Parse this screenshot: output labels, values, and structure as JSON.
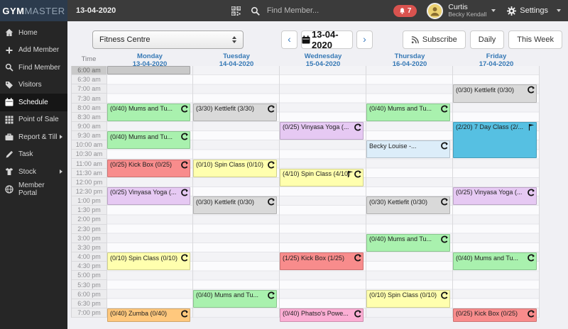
{
  "topbar": {
    "logo_bold": "GYM",
    "logo_light": "MASTER",
    "date": "13-04-2020",
    "search_placeholder": "Find Member...",
    "notification_count": "7",
    "user": {
      "name": "Curtis",
      "subname": "Becky Kendall"
    },
    "settings_label": "Settings"
  },
  "sidebar": {
    "items": [
      {
        "label": "Home",
        "icon": "home",
        "active": false,
        "chevron": false
      },
      {
        "label": "Add Member",
        "icon": "plus",
        "active": false,
        "chevron": false
      },
      {
        "label": "Find Member",
        "icon": "search",
        "active": false,
        "chevron": false
      },
      {
        "label": "Visitors",
        "icon": "tag",
        "active": false,
        "chevron": false
      },
      {
        "label": "Schedule",
        "icon": "calendar",
        "active": true,
        "chevron": false
      },
      {
        "label": "Point of Sale",
        "icon": "grid",
        "active": false,
        "chevron": false
      },
      {
        "label": "Report & Till",
        "icon": "briefcase",
        "active": false,
        "chevron": true
      },
      {
        "label": "Task",
        "icon": "pencil",
        "active": false,
        "chevron": false
      },
      {
        "label": "Stock",
        "icon": "shirt",
        "active": false,
        "chevron": true
      },
      {
        "label": "Member Portal",
        "icon": "globe",
        "active": false,
        "chevron": false
      }
    ]
  },
  "toolbar": {
    "location_select": "Fitness Centre",
    "prev": "‹",
    "next": "›",
    "nav_date": "13-04-2020",
    "buttons": [
      {
        "label": "Subscribe",
        "icon": "rss"
      },
      {
        "label": "Daily"
      },
      {
        "label": "This Week"
      }
    ]
  },
  "calendar": {
    "time_header": "Time",
    "days": [
      {
        "name": "Monday",
        "date": "13-04-2020"
      },
      {
        "name": "Tuesday",
        "date": "14-04-2020"
      },
      {
        "name": "Wednesday",
        "date": "15-04-2020"
      },
      {
        "name": "Thursday",
        "date": "16-04-2020"
      },
      {
        "name": "Friday",
        "date": "17-04-2020"
      }
    ],
    "times": [
      "6:00 am",
      "6:30 am",
      "7:00 am",
      "7:30 am",
      "8:00 am",
      "8:30 am",
      "9:00 am",
      "9:30 am",
      "10:00 am",
      "10:30 am",
      "11:00 am",
      "11:30 am",
      "12:00 pm",
      "12:30 pm",
      "1:00 pm",
      "1:30 pm",
      "2:00 pm",
      "2:30 pm",
      "3:00 pm",
      "3:30 pm",
      "4:00 pm",
      "4:30 pm",
      "5:00 pm",
      "5:30 pm",
      "6:00 pm",
      "6:30 pm",
      "7:00 pm"
    ],
    "current_time_row": "6:00 am",
    "colors": {
      "green": "#a9f1ae",
      "gray": "#d9d9d9",
      "graydark": "#c9c9c9",
      "red": "#f88c8c",
      "yellow": "#ffffae",
      "purple": "#e6c9f3",
      "blue": "#56c0e2",
      "lightblue": "#dcedf9",
      "orange": "#ffc87d",
      "pink": "#fbaed4"
    },
    "events": [
      {
        "day": 0,
        "start": 0,
        "dur": 30,
        "color": "graydark",
        "label": "",
        "icons": []
      },
      {
        "day": 0,
        "start": 120,
        "dur": 60,
        "color": "green",
        "label": "(0/40) Mums and Tu...",
        "icons": [
          "recur"
        ]
      },
      {
        "day": 0,
        "start": 210,
        "dur": 60,
        "color": "green",
        "label": "(0/40) Mums and Tu...",
        "icons": [
          "recur"
        ]
      },
      {
        "day": 0,
        "start": 300,
        "dur": 60,
        "color": "red",
        "label": "(0/25) Kick Box (0/25)",
        "icons": [
          "recur"
        ]
      },
      {
        "day": 0,
        "start": 390,
        "dur": 60,
        "color": "purple",
        "label": "(0/25) Vinyasa Yoga (...",
        "icons": [
          "recur"
        ]
      },
      {
        "day": 0,
        "start": 600,
        "dur": 60,
        "color": "yellow",
        "label": "(0/10) Spin Class (0/10)",
        "icons": [
          "recur"
        ]
      },
      {
        "day": 0,
        "start": 780,
        "dur": 45,
        "color": "orange",
        "label": "(0/40) Zumba (0/40)",
        "icons": [
          "recur"
        ]
      },
      {
        "day": 1,
        "start": 120,
        "dur": 60,
        "color": "gray",
        "label": "(3/30) Kettlefit (3/30)",
        "icons": [
          "recur"
        ]
      },
      {
        "day": 1,
        "start": 300,
        "dur": 60,
        "color": "yellow",
        "label": "(0/10) Spin Class (0/10)",
        "icons": [
          "recur"
        ]
      },
      {
        "day": 1,
        "start": 420,
        "dur": 60,
        "color": "gray",
        "label": "(0/30) Kettlefit (0/30)",
        "icons": [
          "recur"
        ]
      },
      {
        "day": 1,
        "start": 720,
        "dur": 60,
        "color": "green",
        "label": "(0/40) Mums and Tu...",
        "icons": [
          "recur"
        ]
      },
      {
        "day": 2,
        "start": 180,
        "dur": 60,
        "color": "purple",
        "label": "(0/25) Vinyasa Yoga (...",
        "icons": [
          "recur"
        ]
      },
      {
        "day": 2,
        "start": 330,
        "dur": 60,
        "color": "yellow",
        "label": "(4/10) Spin Class (4/10)",
        "icons": [
          "flag",
          "recur"
        ]
      },
      {
        "day": 2,
        "start": 600,
        "dur": 60,
        "color": "red",
        "label": "(1/25) Kick Box (1/25)",
        "icons": [
          "recur"
        ]
      },
      {
        "day": 2,
        "start": 780,
        "dur": 45,
        "color": "pink",
        "label": "(0/40) Phatso's Powe...",
        "icons": [
          "recur"
        ]
      },
      {
        "day": 3,
        "start": 120,
        "dur": 60,
        "color": "green",
        "label": "(0/40) Mums and Tu...",
        "icons": [
          "recur"
        ]
      },
      {
        "day": 3,
        "start": 240,
        "dur": 60,
        "color": "lightblue",
        "label": "Becky Louise -...",
        "icons": [
          "recur"
        ]
      },
      {
        "day": 3,
        "start": 420,
        "dur": 60,
        "color": "gray",
        "label": "(0/30) Kettlefit (0/30)",
        "icons": [
          "recur"
        ]
      },
      {
        "day": 3,
        "start": 540,
        "dur": 60,
        "color": "green",
        "label": "(0/40) Mums and Tu...",
        "icons": [
          "recur"
        ]
      },
      {
        "day": 3,
        "start": 720,
        "dur": 60,
        "color": "yellow",
        "label": "(0/10) Spin Class (0/10)",
        "icons": [
          "recur"
        ]
      },
      {
        "day": 4,
        "start": 60,
        "dur": 60,
        "color": "gray",
        "label": "(0/30) Kettlefit (0/30)",
        "icons": [
          "recur"
        ]
      },
      {
        "day": 4,
        "start": 180,
        "dur": 120,
        "color": "blue",
        "label": "(2/20) 7 Day Class (2/...",
        "icons": [
          "flag"
        ]
      },
      {
        "day": 4,
        "start": 390,
        "dur": 60,
        "color": "purple",
        "label": "(0/25) Vinyasa Yoga (...",
        "icons": [
          "recur"
        ]
      },
      {
        "day": 4,
        "start": 600,
        "dur": 60,
        "color": "green",
        "label": "(0/40) Mums and Tu...",
        "icons": [
          "recur"
        ]
      },
      {
        "day": 4,
        "start": 780,
        "dur": 45,
        "color": "red",
        "label": "(0/25) Kick Box (0/25)",
        "icons": [
          "recur"
        ]
      }
    ]
  }
}
